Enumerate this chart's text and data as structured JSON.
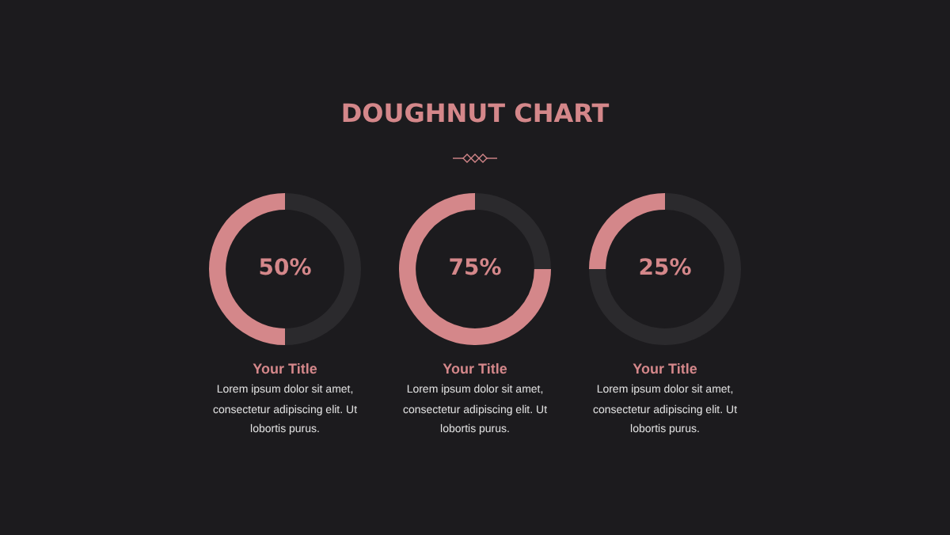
{
  "chart_data": [
    {
      "type": "other",
      "title": "DOUGHNUT CHART"
    },
    {
      "type": "donut",
      "title": "Your Title",
      "categories": [
        null,
        null
      ],
      "values": [
        50,
        50
      ],
      "colors": [
        "#2b2a2d",
        "#d4878a"
      ],
      "value_labels": [
        null,
        "50%"
      ],
      "annotations": [
        "Lorem ipsum dolor sit amet, consectetur adipiscing elit. Ut lobortis purus."
      ]
    },
    {
      "type": "donut",
      "title": "Your Title",
      "categories": [
        null,
        null
      ],
      "values": [
        25,
        75
      ],
      "colors": [
        "#2b2a2d",
        "#d4878a"
      ],
      "value_labels": [
        null,
        "75%"
      ],
      "annotations": [
        "Lorem ipsum dolor sit amet, consectetur adipiscing elit. Ut lobortis purus."
      ]
    },
    {
      "type": "donut",
      "title": "Your Title",
      "categories": [
        null,
        null
      ],
      "values": [
        75,
        25
      ],
      "colors": [
        "#2b2a2d",
        "#d4878a"
      ],
      "value_labels": [
        null,
        "25%"
      ],
      "annotations": [
        "Lorem ipsum dolor sit amet, consectetur adipiscing elit. Ut lobortis purus."
      ]
    }
  ]
}
